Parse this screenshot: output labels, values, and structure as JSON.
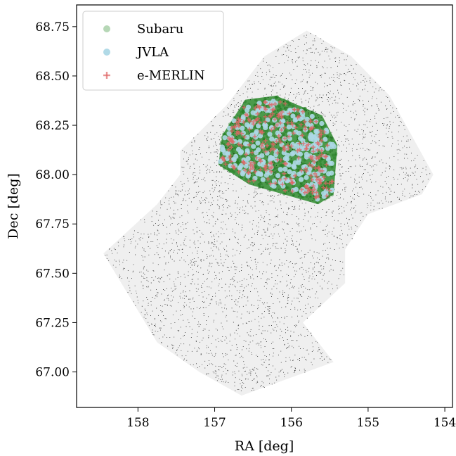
{
  "chart_data": {
    "type": "scatter",
    "title": "",
    "xlabel": "RA [deg]",
    "ylabel": "Dec [deg]",
    "xlim": [
      158.8,
      153.9
    ],
    "ylim": [
      66.82,
      68.86
    ],
    "x_ticks": [
      158,
      157,
      156,
      155,
      154
    ],
    "x_tick_labels": [
      "158",
      "157",
      "156",
      "155",
      "154"
    ],
    "y_ticks": [
      67.0,
      67.25,
      67.5,
      67.75,
      68.0,
      68.25,
      68.5,
      68.75
    ],
    "y_tick_labels": [
      "67.00",
      "67.25",
      "67.50",
      "67.75",
      "68.00",
      "68.25",
      "68.50",
      "68.75"
    ],
    "grid": false,
    "legend_position": "top-left",
    "series": [
      {
        "name": "Subaru",
        "color": "#2e8b2e",
        "marker": "circle",
        "footprint_ra_dec": [
          [
            156.2,
            68.4
          ],
          [
            155.6,
            68.3
          ],
          [
            155.4,
            68.15
          ],
          [
            155.45,
            67.9
          ],
          [
            155.65,
            67.85
          ],
          [
            156.55,
            67.95
          ],
          [
            156.95,
            68.05
          ],
          [
            156.9,
            68.2
          ],
          [
            156.6,
            68.38
          ]
        ]
      },
      {
        "name": "JVLA",
        "color": "#add8e6",
        "marker": "circle",
        "footprint_ra_dec": [
          [
            156.2,
            68.38
          ],
          [
            155.62,
            68.28
          ],
          [
            155.43,
            68.15
          ],
          [
            155.47,
            67.9
          ],
          [
            155.65,
            67.87
          ],
          [
            156.55,
            67.96
          ],
          [
            156.93,
            68.06
          ],
          [
            156.88,
            68.2
          ],
          [
            156.6,
            68.36
          ]
        ]
      },
      {
        "name": "e-MERLIN",
        "color": "#e06666",
        "marker": "plus",
        "footprint_ra_dec": [
          [
            156.2,
            68.38
          ],
          [
            155.62,
            68.28
          ],
          [
            155.43,
            68.15
          ],
          [
            155.47,
            67.9
          ],
          [
            155.65,
            67.87
          ],
          [
            156.55,
            67.96
          ],
          [
            156.93,
            68.06
          ],
          [
            156.88,
            68.2
          ],
          [
            156.6,
            68.36
          ]
        ]
      },
      {
        "color": "#000000",
        "marker": "dot",
        "footprint_ra_dec": [
          [
            155.8,
            68.73
          ],
          [
            155.22,
            68.6
          ],
          [
            154.72,
            68.4
          ],
          [
            154.15,
            68.0
          ],
          [
            154.3,
            67.9
          ],
          [
            155.0,
            67.8
          ],
          [
            155.3,
            67.62
          ],
          [
            155.3,
            67.45
          ],
          [
            155.85,
            67.25
          ],
          [
            155.45,
            67.05
          ],
          [
            156.65,
            66.88
          ],
          [
            157.2,
            67.0
          ],
          [
            157.75,
            67.15
          ],
          [
            158.45,
            67.6
          ],
          [
            157.75,
            67.85
          ],
          [
            157.45,
            68.0
          ],
          [
            157.45,
            68.12
          ],
          [
            156.85,
            68.35
          ],
          [
            156.35,
            68.6
          ]
        ]
      }
    ]
  }
}
